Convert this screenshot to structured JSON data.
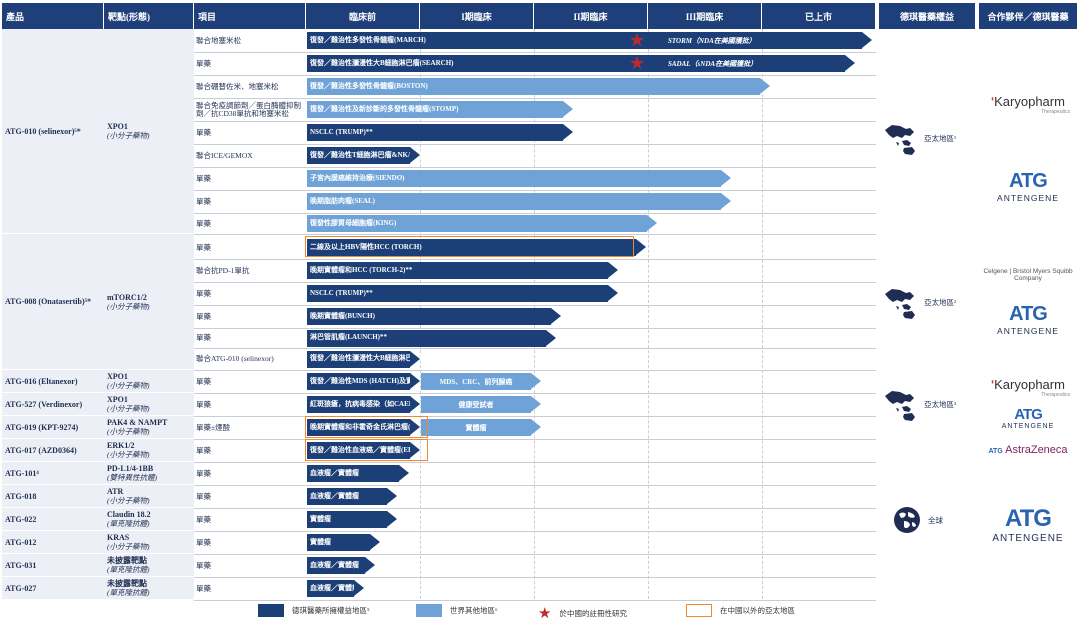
{
  "headers": {
    "product": "產品",
    "target": "靶點(形態)",
    "project": "項目",
    "preclinical": "臨床前",
    "phase1": "I期臨床",
    "phase2": "II期臨床",
    "phase3": "III期臨床",
    "marketed": "已上市",
    "rights": "德琪醫藥權益",
    "partner": "合作夥伴／德琪醫藥"
  },
  "groups": [
    {
      "product": "ATG-010 (selinexor)⁵*",
      "target": "XPO1",
      "modality": "(小分子藥物)"
    },
    {
      "product": "ATG-008 (Onatasertib)⁵*",
      "target": "mTORC1/2",
      "modality": "(小分子藥物)"
    },
    {
      "product": "ATG-016 (Eltanexor)",
      "target": "XPO1",
      "modality": "(小分子藥物)"
    },
    {
      "product": "ATG-527 (Verdinexor)",
      "target": "XPO1",
      "modality": "(小分子藥物)"
    },
    {
      "product": "ATG-019 (KPT-9274)",
      "target": "PAK4 & NAMPT",
      "modality": "(小分子藥物)"
    },
    {
      "product": "ATG-017 (AZD0364)",
      "target": "ERK1/2",
      "modality": "(小分子藥物)"
    },
    {
      "product": "ATG-101⁴",
      "target": "PD-L1/4-1BB",
      "modality": "(雙特異性抗體)"
    },
    {
      "product": "ATG-018",
      "target": "ATR",
      "modality": "(小分子藥物)"
    },
    {
      "product": "ATG-022",
      "target": "Claudin 18.2",
      "modality": "(單克隆抗體)"
    },
    {
      "product": "ATG-012",
      "target": "KRAS",
      "modality": "(小分子藥物)"
    },
    {
      "product": "ATG-031",
      "target": "未披露靶點",
      "modality": "(單克隆抗體)"
    },
    {
      "product": "ATG-027",
      "target": "未披露靶點",
      "modality": "(單克隆抗體)"
    }
  ],
  "rows": [
    {
      "project": "聯合地塞米松",
      "bar": "復發／難治性多發性骨髓瘤(MARCH)",
      "ext": "STORM（NDA在美國獲批）",
      "progress": 1.0,
      "type": "dark"
    },
    {
      "project": "單藥",
      "bar": "復發／難治性瀰漫性大B細胞淋巴瘤(SEARCH)",
      "ext": "SADAL（sNDA在美國獲批）",
      "progress": 0.97,
      "type": "dark"
    },
    {
      "project": "聯合硼替佐米、地塞米松",
      "bar": "復發／難治性多發性骨髓瘤(BOSTON)",
      "ext": "",
      "progress": 0.82,
      "type": "light"
    },
    {
      "project": "聯合免疫調節劑／蛋白酶體抑制劑／抗CD38單抗和地塞米松",
      "bar": "復發／難治性及新診斷的多發性骨髓瘤(STOMP)",
      "ext": "",
      "progress": 0.47,
      "type": "light"
    },
    {
      "project": "單藥",
      "bar": "NSCLC (TRUMP)**",
      "ext": "",
      "progress": 0.47,
      "type": "dark"
    },
    {
      "project": "聯合ICE/GEMOX",
      "bar": "復發／難治性T細胞淋巴瘤&NK/T細胞淋巴瘤(TOUCH)",
      "ext": "",
      "progress": 0.2,
      "type": "dark"
    },
    {
      "project": "單藥",
      "bar": "子宮內膜癌維持治療(SIENDO)",
      "ext": "",
      "progress": 0.75,
      "type": "light"
    },
    {
      "project": "單藥",
      "bar": "晚期脂肪肉瘤(SEAL)",
      "ext": "",
      "progress": 0.75,
      "type": "light"
    },
    {
      "project": "單藥",
      "bar": "復發性膠質母細胞瘤(KING)",
      "ext": "",
      "progress": 0.62,
      "type": "light"
    },
    {
      "project": "單藥",
      "bar": "二線及以上HBV陽性HCC (TORCH)",
      "ext": "",
      "progress": 0.6,
      "type": "dark"
    },
    {
      "project": "聯合抗PD-1單抗",
      "bar": "晚期實體瘤和HCC (TORCH-2)**",
      "ext": "",
      "progress": 0.55,
      "type": "dark"
    },
    {
      "project": "單藥",
      "bar": "NSCLC (TRUMP)**",
      "ext": "",
      "progress": 0.55,
      "type": "dark"
    },
    {
      "project": "單藥",
      "bar": "晚期實體瘤(BUNCH)",
      "ext": "",
      "progress": 0.45,
      "type": "dark"
    },
    {
      "project": "單藥",
      "bar": "淋巴管肌瘤(LAUNCH)**",
      "ext": "",
      "progress": 0.44,
      "type": "dark"
    },
    {
      "project": "聯合ATG-010 (selinexor)",
      "bar": "復發／難治性瀰漫性大B細胞淋巴瘤(MATCH)",
      "ext": "",
      "progress": 0.2,
      "type": "dark"
    },
    {
      "project": "單藥",
      "bar": "復發／難治性MDS (HATCH)及實體瘤",
      "ext": "MDS、CRC、前列腺癌",
      "progress": 0.2,
      "type": "dark"
    },
    {
      "project": "單藥",
      "bar": "紅斑狼瘡，抗病毒感染（如CAEBV）(CATCH)",
      "ext": "健康受試者",
      "progress": 0.2,
      "type": "dark"
    },
    {
      "project": "單藥±煙酸",
      "bar": "晚期實體瘤和非霍奇金氏淋巴瘤(TEACH)",
      "ext": "實體瘤",
      "progress": 0.2,
      "type": "dark"
    },
    {
      "project": "單藥",
      "bar": "復發／難治性血液癌／實體瘤(ERASER)",
      "ext": "",
      "progress": 0.2,
      "type": "dark"
    },
    {
      "project": "單藥",
      "bar": "血液瘤／實體瘤",
      "ext": "",
      "progress": 0.18,
      "type": "dark"
    },
    {
      "project": "單藥",
      "bar": "血液瘤／實體瘤",
      "ext": "",
      "progress": 0.16,
      "type": "dark"
    },
    {
      "project": "單藥",
      "bar": "實體瘤",
      "ext": "",
      "progress": 0.16,
      "type": "dark"
    },
    {
      "project": "單藥",
      "bar": "實體瘤",
      "ext": "",
      "progress": 0.13,
      "type": "dark"
    },
    {
      "project": "單藥",
      "bar": "血液瘤／實體瘤",
      "ext": "",
      "progress": 0.12,
      "type": "dark"
    },
    {
      "project": "單藥",
      "bar": "血液瘤／實體瘤",
      "ext": "",
      "progress": 0.1,
      "type": "dark"
    }
  ],
  "regions": [
    "亞太地區¹",
    "亞太地區²",
    "亞太地區³",
    "全球"
  ],
  "partners": {
    "karyopharm": "Karyopharm",
    "karyopharm_sub": "Therapeutics",
    "antengene": "ANTENGENE",
    "celgene": "Celgene | Bristol Myers Squibb Company",
    "astrazeneca": "AstraZeneca"
  },
  "legend": {
    "dark": "德琪醫藥所擁權益地區⁵",
    "light": "世界其他地區⁶",
    "star": "於中國的註冊性研究",
    "box": "在中國以外的亞太地區"
  },
  "colors": {
    "dark": "#1c3f78",
    "light": "#6fa3d8",
    "star": "#c02a2a",
    "box": "#f08a2c"
  }
}
